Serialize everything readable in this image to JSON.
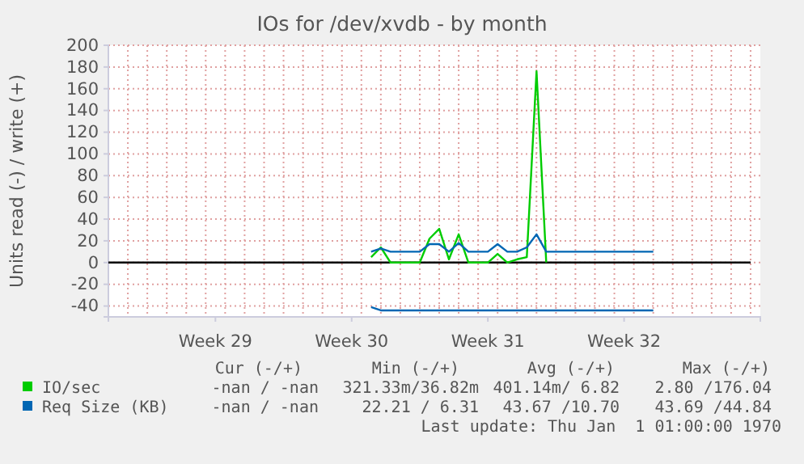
{
  "chart_data": {
    "type": "line",
    "title": "IOs for /dev/xvdb - by month",
    "ylabel": "Units read (-) / write (+)",
    "categories": [
      null,
      null,
      null,
      null,
      null,
      null,
      null,
      null,
      null,
      null,
      null,
      "Week 29",
      null,
      null,
      null,
      null,
      null,
      null,
      null,
      null,
      null,
      null,
      null,
      null,
      null,
      "Week 30",
      null,
      null,
      null,
      null,
      null,
      null,
      null,
      null,
      null,
      null,
      null,
      null,
      null,
      "Week 31",
      null,
      null,
      null,
      null,
      null,
      null,
      null,
      null,
      null,
      null,
      null,
      null,
      null,
      "Week 32",
      null,
      null,
      null,
      null,
      null,
      null,
      null,
      null,
      null,
      null,
      null,
      null,
      null,
      null
    ],
    "ylim": [
      -50,
      200
    ],
    "yticks": [
      -40,
      -20,
      0,
      20,
      40,
      60,
      80,
      100,
      120,
      140,
      160,
      180,
      200
    ],
    "grid": true,
    "legend": "bottom",
    "ref_lines": [
      {
        "axis": "y",
        "value": 0,
        "color": "#000000"
      }
    ],
    "series": [
      {
        "name": "IO/sec",
        "color": "#00cc00",
        "values": [
          null,
          null,
          null,
          null,
          null,
          null,
          null,
          null,
          null,
          null,
          null,
          null,
          null,
          null,
          null,
          null,
          null,
          null,
          null,
          null,
          null,
          null,
          null,
          null,
          null,
          null,
          null,
          5,
          14,
          0,
          0,
          0,
          0,
          22,
          31,
          3,
          26,
          0,
          0,
          0,
          8,
          0,
          3,
          5,
          176,
          0,
          null,
          null,
          null,
          null,
          null,
          null,
          null,
          null,
          null,
          null,
          null,
          null,
          null,
          null,
          null,
          null,
          null,
          null,
          null,
          null,
          null,
          null
        ]
      },
      {
        "name": "Req Size (KB)",
        "color": "#0066b3",
        "values": [
          null,
          null,
          null,
          null,
          null,
          null,
          null,
          null,
          null,
          null,
          null,
          null,
          null,
          null,
          null,
          null,
          null,
          null,
          null,
          null,
          null,
          null,
          null,
          null,
          null,
          null,
          null,
          10,
          13,
          10,
          10,
          10,
          10,
          17,
          17,
          10,
          18,
          10,
          10,
          10,
          17,
          10,
          10,
          14,
          26,
          10,
          10,
          10,
          10,
          10,
          10,
          10,
          10,
          10,
          10,
          10,
          10,
          null,
          null,
          null,
          null,
          null,
          null,
          null,
          null,
          null,
          null,
          null
        ]
      },
      {
        "color": "#0066b3",
        "values": [
          null,
          null,
          null,
          null,
          null,
          null,
          null,
          null,
          null,
          null,
          null,
          null,
          null,
          null,
          null,
          null,
          null,
          null,
          null,
          null,
          null,
          null,
          null,
          null,
          null,
          null,
          null,
          -41,
          -44,
          -44,
          -44,
          -44,
          -44,
          -44,
          -44,
          -44,
          -44,
          -44,
          -44,
          -44,
          -44,
          -44,
          -44,
          -44,
          -44,
          -44,
          -44,
          -44,
          -44,
          -44,
          -44,
          -44,
          -44,
          -44,
          -44,
          -44,
          -44,
          null,
          null,
          null,
          null,
          null,
          null,
          null,
          null,
          null,
          null,
          null
        ]
      }
    ],
    "annotations": [
      "Cur (-/+)",
      "Min (-/+)",
      "Avg (-/+)",
      "Max (-/+)",
      "-nan / -nan",
      "321.33m/36.82m",
      "401.14m/ 6.82",
      "2.80 /176.04",
      "-nan / -nan",
      "22.21 / 6.31",
      "43.67 /10.70",
      "43.69 /44.84",
      "Last update: Thu Jan  1 01:00:00 1970"
    ]
  }
}
